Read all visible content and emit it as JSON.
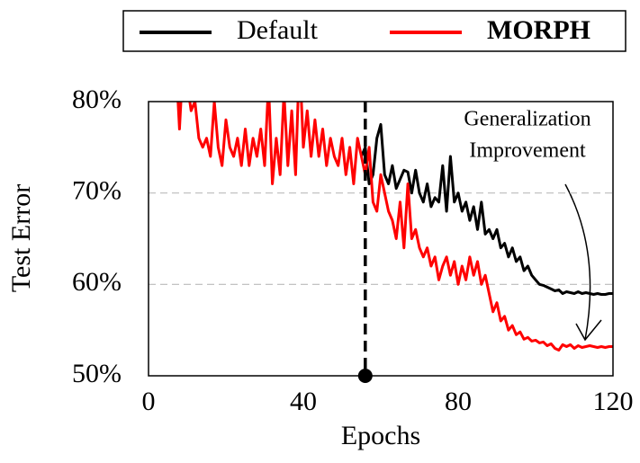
{
  "chart_data": {
    "type": "line",
    "xlabel": "Epochs",
    "ylabel": "Test Error",
    "annotations": [
      "Generalization",
      "Improvement"
    ],
    "series": [
      {
        "name": "Default",
        "color": "#000000",
        "bold": false,
        "x": [
          55,
          56,
          57,
          58,
          59,
          60,
          61,
          62,
          63,
          64,
          65,
          66,
          67,
          68,
          69,
          70,
          71,
          72,
          73,
          74,
          75,
          76,
          77,
          78,
          79,
          80,
          81,
          82,
          83,
          84,
          85,
          86,
          87,
          88,
          89,
          90,
          91,
          92,
          93,
          94,
          95,
          96,
          97,
          98,
          99,
          100,
          101,
          102,
          103,
          104,
          105,
          106,
          107,
          108,
          109,
          110,
          111,
          112,
          113,
          114,
          115,
          116,
          117,
          118,
          119,
          120
        ],
        "values": [
          74,
          75,
          71,
          72,
          76,
          77.5,
          72,
          71,
          73,
          70.5,
          71.5,
          72.5,
          72.3,
          70,
          72.5,
          70,
          69,
          71,
          68.5,
          69.5,
          69,
          73,
          68,
          74,
          69,
          70,
          68,
          69,
          67,
          68.5,
          66,
          69,
          65.5,
          66,
          65,
          66,
          64,
          64.5,
          63,
          64,
          62.5,
          63,
          61.5,
          62,
          61,
          60.5,
          60,
          59.9,
          59.7,
          59.5,
          59.3,
          59.4,
          59,
          59.2,
          59.1,
          59,
          59.2,
          59,
          59.1,
          59,
          58.9,
          59,
          58.9,
          58.9,
          59,
          59
        ]
      },
      {
        "name": "MORPH",
        "color": "#ff0000",
        "bold": true,
        "x": [
          7,
          8,
          9,
          10,
          11,
          12,
          13,
          14,
          15,
          16,
          17,
          18,
          19,
          20,
          21,
          22,
          23,
          24,
          25,
          26,
          27,
          28,
          29,
          30,
          31,
          32,
          33,
          34,
          35,
          36,
          37,
          38,
          39,
          40,
          41,
          42,
          43,
          44,
          45,
          46,
          47,
          48,
          49,
          50,
          51,
          52,
          53,
          54,
          55,
          56,
          57,
          58,
          59,
          60,
          61,
          62,
          63,
          64,
          65,
          66,
          67,
          68,
          69,
          70,
          71,
          72,
          73,
          74,
          75,
          76,
          77,
          78,
          79,
          80,
          81,
          82,
          83,
          84,
          85,
          86,
          87,
          88,
          89,
          90,
          91,
          92,
          93,
          94,
          95,
          96,
          97,
          98,
          99,
          100,
          101,
          102,
          103,
          104,
          105,
          106,
          107,
          108,
          109,
          110,
          111,
          112,
          113,
          114,
          115,
          116,
          117,
          118,
          119,
          120
        ],
        "values": [
          85,
          77,
          85,
          82,
          79,
          80,
          76,
          75,
          76,
          74,
          80,
          75,
          73,
          78,
          75,
          74,
          76,
          73,
          77,
          73,
          76,
          74,
          77,
          73,
          82,
          71,
          76,
          72,
          81,
          73,
          79,
          72,
          85,
          75,
          79,
          74,
          78,
          74,
          77,
          73,
          76,
          74,
          73,
          76,
          72,
          75,
          71,
          76,
          74,
          72,
          75,
          69,
          68,
          72,
          70,
          68,
          67,
          65,
          69,
          64,
          71,
          65,
          66,
          64,
          63,
          64,
          62,
          63,
          60.5,
          62,
          63,
          61,
          62.5,
          60,
          62,
          60.5,
          63,
          61,
          62.5,
          60,
          61,
          59,
          57,
          58,
          56,
          56.5,
          55,
          55.5,
          54.5,
          54.8,
          54,
          54.2,
          53.8,
          53.9,
          53.6,
          53.7,
          53.3,
          53.5,
          53,
          52.8,
          53.4,
          53.2,
          53.4,
          53,
          53.3,
          53.1,
          53.2,
          53.3,
          53.2,
          53.1,
          53.2,
          53.1,
          53.2,
          53.2
        ]
      }
    ],
    "marker_x": 56,
    "xlim": [
      0,
      120
    ],
    "xticks": [
      0,
      40,
      80,
      120
    ],
    "ylim": [
      50,
      80
    ],
    "yticks": [
      {
        "value": 50,
        "label": "50%"
      },
      {
        "value": 60,
        "label": "60%"
      },
      {
        "value": 70,
        "label": "70%"
      },
      {
        "value": 80,
        "label": "80%"
      }
    ],
    "grid": true,
    "legend": "top"
  }
}
